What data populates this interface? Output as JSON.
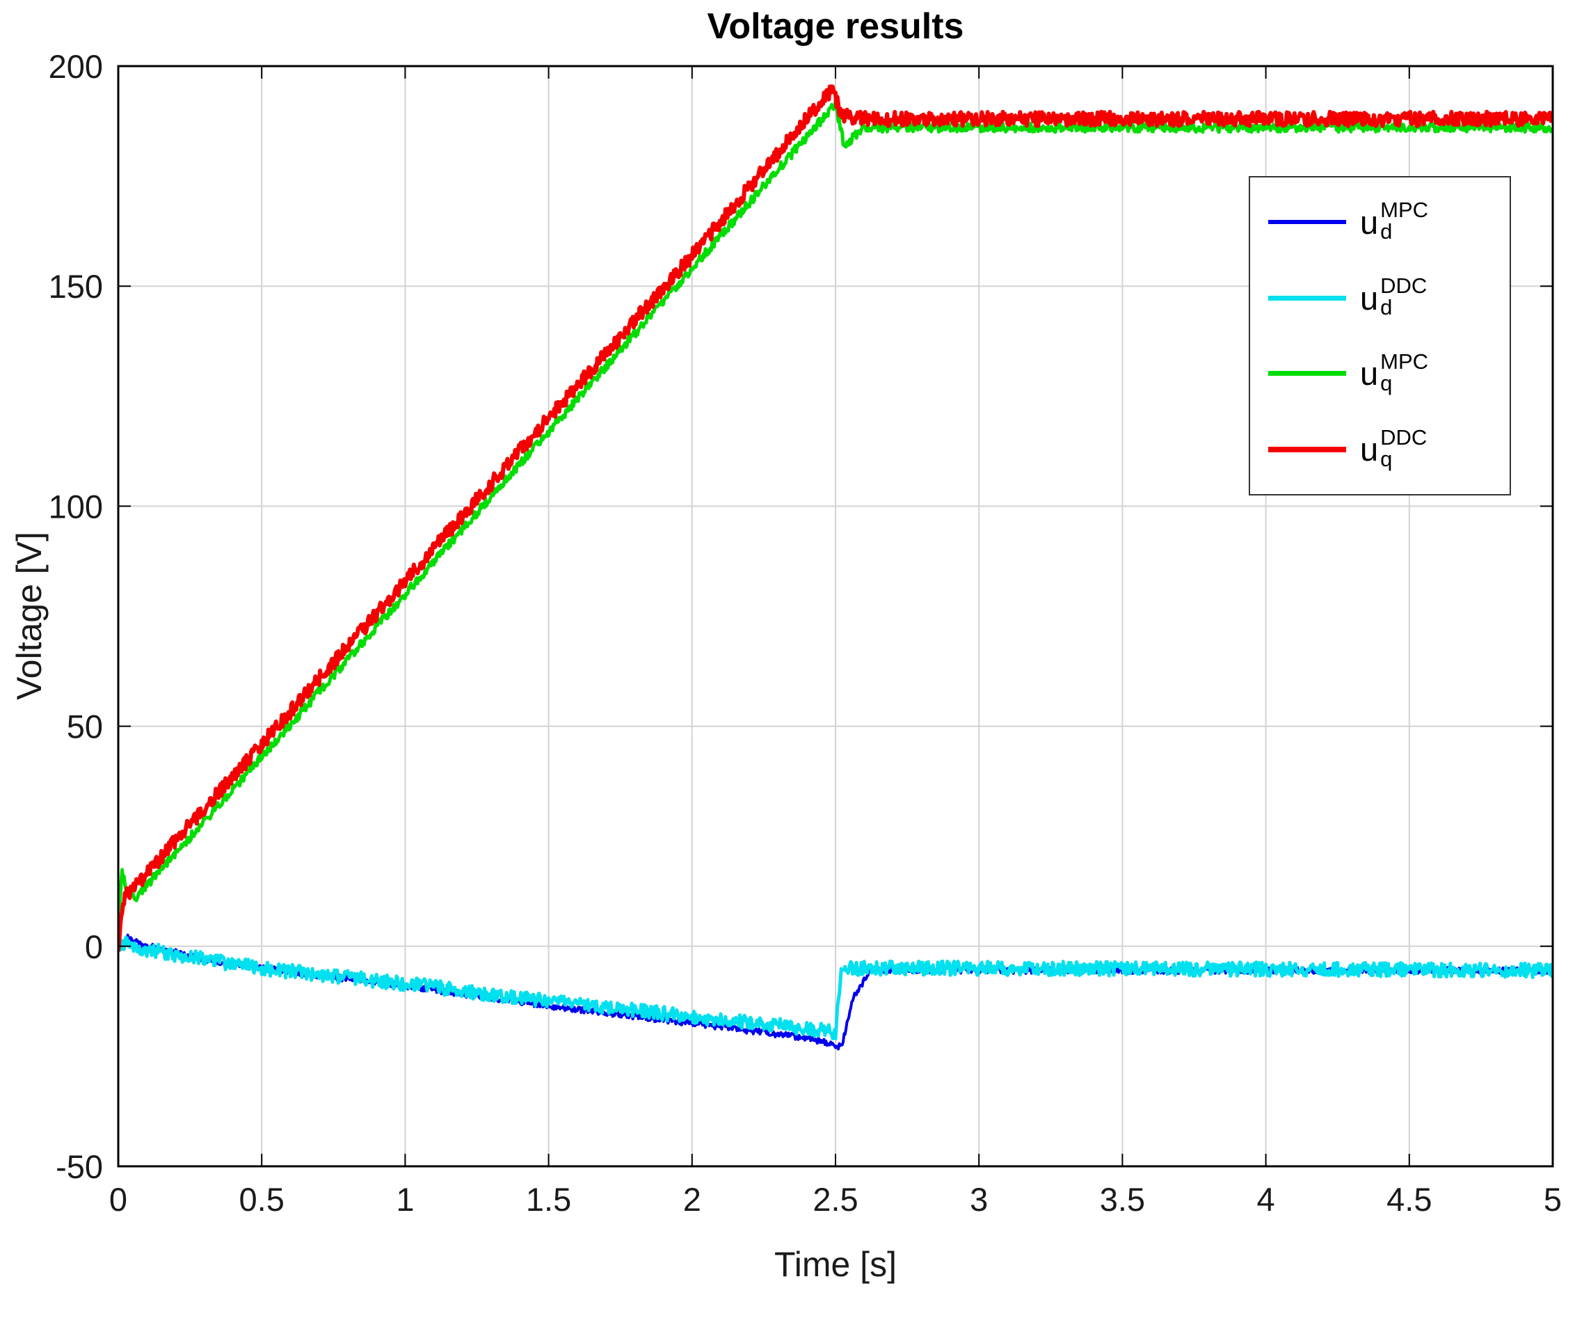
{
  "chart_data": {
    "type": "line",
    "title": "Voltage results",
    "xlabel": "Time [s]",
    "ylabel": "Voltage [V]",
    "xlim": [
      0,
      5
    ],
    "ylim": [
      -50,
      200
    ],
    "xticks": [
      0,
      0.5,
      1,
      1.5,
      2,
      2.5,
      3,
      3.5,
      4,
      4.5,
      5
    ],
    "yticks": [
      -50,
      0,
      50,
      100,
      150,
      200
    ],
    "grid": true,
    "grid_color": "#d3d3d3",
    "axis_color": "#000000",
    "tick_label_color": "#1a1a1a",
    "legend_position": "upper right",
    "legend_border_color": "#333333",
    "series": [
      {
        "name": "u_d^MPC",
        "label_base": "u",
        "label_sub": "d",
        "label_sup": "MPC",
        "color": "#0000ee",
        "width": 4,
        "noise": 0.7,
        "x": [
          0,
          0.03,
          0.08,
          0.3,
          0.5,
          1.0,
          1.5,
          2.0,
          2.3,
          2.45,
          2.5,
          2.52,
          2.56,
          2.62,
          3.0,
          4.0,
          5.0
        ],
        "y": [
          0,
          2,
          0.5,
          -3,
          -5,
          -9,
          -13.5,
          -17.5,
          -20,
          -21.5,
          -22.5,
          -23,
          -12,
          -5.5,
          -5.5,
          -5.5,
          -5.5
        ]
      },
      {
        "name": "u_d^DDC",
        "label_base": "u",
        "label_sub": "d",
        "label_sup": "DDC",
        "color": "#00e0ee",
        "width": 5,
        "noise": 1.6,
        "x": [
          0,
          0.03,
          0.08,
          0.3,
          0.5,
          1.0,
          1.5,
          2.0,
          2.3,
          2.45,
          2.5,
          2.52,
          3.0,
          4.0,
          5.0
        ],
        "y": [
          0,
          1,
          -0.5,
          -3,
          -5,
          -8.5,
          -12.5,
          -16,
          -18,
          -19,
          -19.5,
          -5,
          -5,
          -5.2,
          -5.5
        ]
      },
      {
        "name": "u_q^MPC",
        "label_base": "u",
        "label_sub": "q",
        "label_sup": "MPC",
        "color": "#00dd00",
        "width": 5,
        "noise": 1.0,
        "x": [
          0,
          0.012,
          0.03,
          0.06,
          0.5,
          1.0,
          1.5,
          2.0,
          2.48,
          2.5,
          2.53,
          2.6,
          3.0,
          4.0,
          5.0
        ],
        "y": [
          2,
          18,
          13,
          11,
          43,
          80,
          117,
          154,
          190,
          191,
          182,
          186,
          186,
          186,
          186
        ]
      },
      {
        "name": "u_q^DDC",
        "label_base": "u",
        "label_sub": "q",
        "label_sup": "DDC",
        "color": "#f40000",
        "width": 6,
        "noise": 1.6,
        "x": [
          0,
          0.02,
          0.05,
          0.5,
          1.0,
          1.5,
          2.0,
          2.45,
          2.49,
          2.52,
          2.56,
          3.0,
          4.0,
          5.0
        ],
        "y": [
          0,
          11,
          13,
          46,
          83,
          120,
          157,
          192,
          194.5,
          189,
          188,
          188,
          188,
          188
        ]
      }
    ]
  }
}
